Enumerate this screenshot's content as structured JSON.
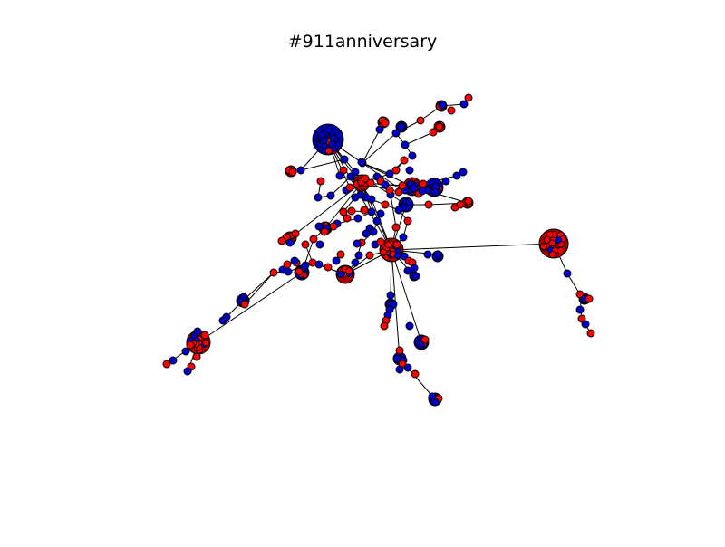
{
  "title": "#911anniversary",
  "colors": {
    "node_red": "#ff0000",
    "node_blue": "#0000cc",
    "edge": "#000000",
    "node_stroke": "#000000"
  },
  "legend": null
}
